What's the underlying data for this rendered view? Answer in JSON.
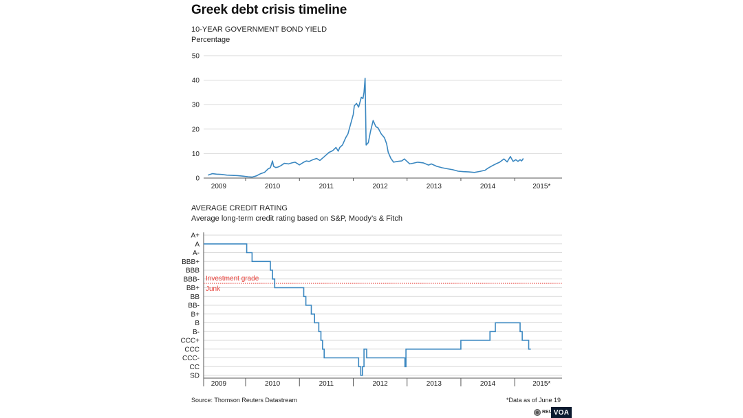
{
  "title": "Greek debt crisis timeline",
  "colors": {
    "line": "#3a87c0",
    "grid": "#d9d9d9",
    "threshold": "#e8403a",
    "axis": "#555555"
  },
  "source": "Source: Thomson Reuters Datastream",
  "footnote": "*Data as of June 19",
  "logos": {
    "reuters": "REUT",
    "voa": "VOA"
  },
  "chart_data": [
    {
      "type": "line",
      "title": "10-YEAR GOVERNMENT BOND YIELD",
      "subtitle": "Percentage",
      "xlabel": "",
      "ylabel": "",
      "xlim": [
        2008.72,
        2015.38
      ],
      "ylim": [
        0,
        50
      ],
      "yticks": [
        0,
        10,
        20,
        30,
        40,
        50
      ],
      "xtick_labels": [
        "2009",
        "2010",
        "2011",
        "2012",
        "2013",
        "2014",
        "2015*"
      ],
      "grid": true,
      "series": [
        {
          "x": [
            2008.8,
            2008.88,
            2008.96,
            2009.05,
            2009.15,
            2009.25,
            2009.35,
            2009.45,
            2009.55,
            2009.62,
            2009.7,
            2009.78,
            2009.85,
            2009.92,
            2009.96,
            2010.0,
            2010.02,
            2010.06,
            2010.1,
            2010.15,
            2010.22,
            2010.3,
            2010.36,
            2010.42,
            2010.5,
            2010.58,
            2010.63,
            2010.68,
            2010.75,
            2010.82,
            2010.88,
            2010.95,
            2011.05,
            2011.12,
            2011.18,
            2011.22,
            2011.25,
            2011.3,
            2011.36,
            2011.4,
            2011.45,
            2011.5,
            2011.52,
            2011.56,
            2011.6,
            2011.65,
            2011.68,
            2011.7,
            2011.72,
            2011.74,
            2011.78,
            2011.82,
            2011.87,
            2011.92,
            2011.96,
            2012.02,
            2012.08,
            2012.12,
            2012.15,
            2012.2,
            2012.25,
            2012.32,
            2012.4,
            2012.45,
            2012.5,
            2012.55,
            2012.6,
            2012.7,
            2012.8,
            2012.9,
            2012.95,
            2013.05,
            2013.15,
            2013.25,
            2013.35,
            2013.45,
            2013.55,
            2013.65,
            2013.75,
            2013.85,
            2013.95,
            2014.0,
            2014.08,
            2014.15,
            2014.22,
            2014.3,
            2014.36,
            2014.42,
            2014.47,
            2014.52,
            2014.56,
            2014.6,
            2014.63,
            2014.66
          ],
          "y": [
            1.2,
            1.8,
            1.6,
            1.5,
            1.2,
            1.1,
            1.0,
            0.8,
            0.5,
            0.4,
            0.9,
            1.8,
            2.3,
            3.8,
            4.2,
            7.0,
            4.8,
            4.3,
            4.5,
            5.0,
            6.0,
            5.8,
            6.2,
            6.5,
            5.4,
            6.5,
            7.0,
            6.8,
            7.5,
            8.0,
            7.2,
            8.5,
            10.5,
            11.2,
            12.5,
            11.0,
            12.5,
            13.5,
            16.5,
            18.0,
            22.0,
            26.0,
            29.5,
            30.5,
            29.0,
            33.0,
            32.5,
            35.0,
            40.8,
            13.5,
            14.5,
            19.0,
            23.5,
            21.0,
            20.5,
            18.0,
            16.5,
            14.0,
            10.5,
            8.0,
            6.5,
            6.8,
            7.0,
            7.8,
            6.8,
            5.8,
            6.0,
            6.5,
            6.2,
            5.3,
            5.8,
            4.8,
            4.2,
            3.8,
            3.4,
            2.8,
            2.6,
            2.5,
            2.3,
            2.7,
            3.2,
            4.0,
            5.0,
            5.8,
            6.5,
            7.8,
            6.6,
            8.8,
            6.8,
            7.5,
            6.8,
            7.5,
            7.0,
            8.0
          ]
        }
      ]
    },
    {
      "type": "line",
      "title": "AVERAGE CREDIT RATING",
      "subtitle": "Average long-term credit rating based on S&P, Moody’s & Fitch",
      "xlabel": "",
      "ylabel": "",
      "xlim": [
        2008.72,
        2015.38
      ],
      "y_categories": [
        "A+",
        "A",
        "A-",
        "BBB+",
        "BBB",
        "BBB-",
        "BB+",
        "BB",
        "BB-",
        "B+",
        "B",
        "B-",
        "CCC+",
        "CCC",
        "CCC-",
        "CC",
        "SD"
      ],
      "xtick_labels": [
        "2009",
        "2010",
        "2011",
        "2012",
        "2013",
        "2014",
        "2015*"
      ],
      "grid": true,
      "step": true,
      "threshold": {
        "between": [
          "BBB-",
          "BB+"
        ],
        "label_above": "Investment grade",
        "label_below": "Junk"
      },
      "series": [
        {
          "x": [
            2008.72,
            2009.52,
            2009.62,
            2009.7,
            2009.96,
            2010.0,
            2010.04,
            2010.08,
            2010.58,
            2010.62,
            2010.72,
            2010.78,
            2010.86,
            2010.9,
            2010.93,
            2010.96,
            2011.0,
            2011.03,
            2011.06,
            2011.08,
            2011.6,
            2011.64,
            2011.67,
            2011.7,
            2011.75,
            2012.44,
            2012.46,
            2012.48,
            2012.8,
            2012.82,
            2013.5,
            2013.52,
            2013.85,
            2013.87,
            2014.04,
            2014.14,
            2014.2,
            2014.22,
            2014.6,
            2014.64,
            2014.7,
            2014.76,
            2014.8
          ],
          "y": [
            "A",
            "A-",
            "BBB+",
            "BBB+",
            "BBB",
            "BBB-",
            "BB+",
            "BB+",
            "BB",
            "BB-",
            "B+",
            "B",
            "B-",
            "CCC+",
            "CCC",
            "CCC-",
            "CCC-",
            "CCC-",
            "CCC-",
            "CCC-",
            "CC",
            "SD",
            "CC",
            "CCC",
            "CCC-",
            "CCC-",
            "CC",
            "CCC",
            "CCC",
            "CCC",
            "CCC+",
            "CCC+",
            "CCC+",
            "CCC+",
            "B-",
            "B",
            "B",
            "B",
            "B-",
            "CCC+",
            "CCC+",
            "CCC",
            "CCC"
          ]
        }
      ]
    }
  ]
}
